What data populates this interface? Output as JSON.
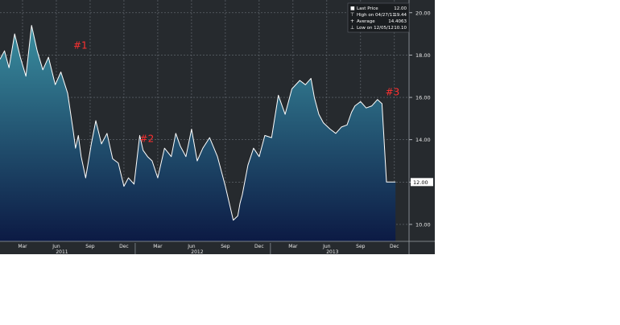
{
  "chart_data": {
    "type": "area",
    "title": "",
    "xlabel": "",
    "ylabel": "",
    "ylim": [
      9.2,
      20.6
    ],
    "y_ticks": [
      "10.00",
      "12.00",
      "14.00",
      "16.00",
      "18.00",
      "20.00"
    ],
    "x_month_ticks": [
      {
        "label": "Mar",
        "t": 2.0
      },
      {
        "label": "Jun",
        "t": 5.0
      },
      {
        "label": "Sep",
        "t": 8.0
      },
      {
        "label": "Dec",
        "t": 11.0
      },
      {
        "label": "Mar",
        "t": 14.0
      },
      {
        "label": "Jun",
        "t": 17.0
      },
      {
        "label": "Sep",
        "t": 20.0
      },
      {
        "label": "Dec",
        "t": 23.0
      },
      {
        "label": "Mar",
        "t": 26.0
      },
      {
        "label": "Jun",
        "t": 29.0
      },
      {
        "label": "Sep",
        "t": 32.0
      },
      {
        "label": "Dec",
        "t": 35.0
      }
    ],
    "x_year_ticks": [
      {
        "label": "2011",
        "t": 5.5
      },
      {
        "label": "2012",
        "t": 17.5
      },
      {
        "label": "2013",
        "t": 29.5
      }
    ],
    "x_range": [
      0,
      36.3
    ],
    "series": [
      {
        "name": "",
        "x": [
          0,
          0.4,
          0.8,
          1.3,
          1.8,
          2.3,
          2.8,
          3.3,
          3.8,
          4.3,
          4.9,
          5.4,
          6.0,
          6.5,
          6.7,
          6.95,
          7.2,
          7.6,
          8.1,
          8.5,
          9.0,
          9.5,
          10.0,
          10.5,
          11.0,
          11.4,
          11.9,
          12.4,
          12.7,
          13.1,
          13.5,
          14.0,
          14.6,
          15.2,
          15.6,
          16.0,
          16.5,
          17.0,
          17.5,
          18.0,
          18.6,
          19.3,
          20.0,
          20.7,
          21.1,
          21.3,
          21.5,
          22.0,
          22.5,
          23.0,
          23.5,
          24.1,
          24.7,
          25.3,
          25.9,
          26.6,
          27.1,
          27.6,
          27.9,
          28.3,
          28.7,
          29.3,
          29.8,
          30.3,
          30.8,
          31.2,
          31.5,
          32.0,
          32.5,
          33.0,
          33.5,
          33.9,
          34.3,
          34.7,
          34.9,
          35.1
        ],
        "values": [
          17.8,
          18.2,
          17.4,
          19.0,
          17.9,
          17.0,
          19.4,
          18.2,
          17.3,
          17.9,
          16.6,
          17.2,
          16.2,
          14.4,
          13.6,
          14.2,
          13.2,
          12.2,
          13.8,
          14.9,
          13.8,
          14.3,
          13.1,
          12.9,
          11.8,
          12.2,
          11.9,
          14.2,
          13.5,
          13.2,
          13.0,
          12.2,
          13.6,
          13.2,
          14.3,
          13.7,
          13.2,
          14.5,
          13.0,
          13.6,
          14.1,
          13.2,
          11.8,
          10.2,
          10.4,
          11.0,
          11.4,
          12.8,
          13.6,
          13.2,
          14.2,
          14.1,
          16.1,
          15.2,
          16.4,
          16.8,
          16.6,
          16.9,
          16.0,
          15.2,
          14.8,
          14.5,
          14.3,
          14.6,
          14.7,
          15.3,
          15.6,
          15.8,
          15.5,
          15.6,
          15.9,
          15.7,
          12.0,
          12.0,
          12.0,
          12.0
        ],
        "stroke": "#ffffff"
      }
    ],
    "legend": {
      "placement": "top-right",
      "entries": [
        {
          "label": "Last Price",
          "value": "12.00"
        },
        {
          "label": "High on 04/27/11",
          "value": "19.44"
        },
        {
          "label": "Average",
          "value": "14.4063"
        },
        {
          "label": "Low on 12/05/12",
          "value": "10.10"
        }
      ]
    },
    "last_price_label": "12.00",
    "last_price_value": 12.0,
    "annotations": [
      {
        "text": "#1",
        "x": 6.5,
        "y": 18.3
      },
      {
        "text": "#2",
        "x": 12.4,
        "y": 13.9
      },
      {
        "text": "#3",
        "x": 34.2,
        "y": 16.1
      }
    ],
    "grid": true,
    "colors": {
      "background": "#262a2e",
      "grid": "#6a7078",
      "fill_top": "#3a8fa0",
      "fill_bottom": "#0c1a44",
      "annotation": "#ff3030",
      "axis_text": "#e8e8e8"
    }
  }
}
